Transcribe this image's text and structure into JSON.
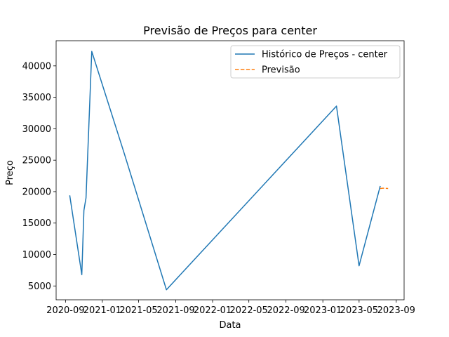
{
  "chart_data": {
    "type": "line",
    "title": "Previsão de Preços para center",
    "xlabel": "Data",
    "ylabel": "Preço",
    "grid": false,
    "legend_position": "top-right",
    "x_ticks": [
      {
        "date": "2020-09-01",
        "label": "2020-09"
      },
      {
        "date": "2021-01-01",
        "label": "2021-01"
      },
      {
        "date": "2021-05-01",
        "label": "2021-05"
      },
      {
        "date": "2021-09-01",
        "label": "2021-09"
      },
      {
        "date": "2022-01-01",
        "label": "2022-01"
      },
      {
        "date": "2022-05-01",
        "label": "2022-05"
      },
      {
        "date": "2022-09-01",
        "label": "2022-09"
      },
      {
        "date": "2023-01-01",
        "label": "2023-01"
      },
      {
        "date": "2023-05-01",
        "label": "2023-05"
      },
      {
        "date": "2023-09-01",
        "label": "2023-09"
      }
    ],
    "y_ticks": [
      5000,
      10000,
      15000,
      20000,
      25000,
      30000,
      35000,
      40000
    ],
    "xlim": [
      "2020-08-01",
      "2023-09-27"
    ],
    "ylim": [
      2800,
      44000
    ],
    "series": [
      {
        "name": "Histórico de Preços - center",
        "color": "#1f77b4",
        "style": "solid",
        "points": [
          {
            "x": "2020-09-15",
            "y": 19400
          },
          {
            "x": "2020-10-25",
            "y": 6800
          },
          {
            "x": "2020-11-01",
            "y": 17000
          },
          {
            "x": "2020-11-08",
            "y": 19000
          },
          {
            "x": "2020-11-27",
            "y": 42300
          },
          {
            "x": "2021-03-15",
            "y": 26000
          },
          {
            "x": "2021-08-01",
            "y": 4400
          },
          {
            "x": "2023-02-15",
            "y": 33600
          },
          {
            "x": "2023-05-01",
            "y": 8200
          },
          {
            "x": "2023-07-10",
            "y": 20900
          }
        ]
      },
      {
        "name": "Previsão",
        "color": "#ff7f0e",
        "style": "dashed",
        "points": [
          {
            "x": "2023-07-10",
            "y": 20500
          },
          {
            "x": "2023-07-20",
            "y": 20550
          },
          {
            "x": "2023-08-05",
            "y": 20500
          }
        ]
      }
    ]
  }
}
